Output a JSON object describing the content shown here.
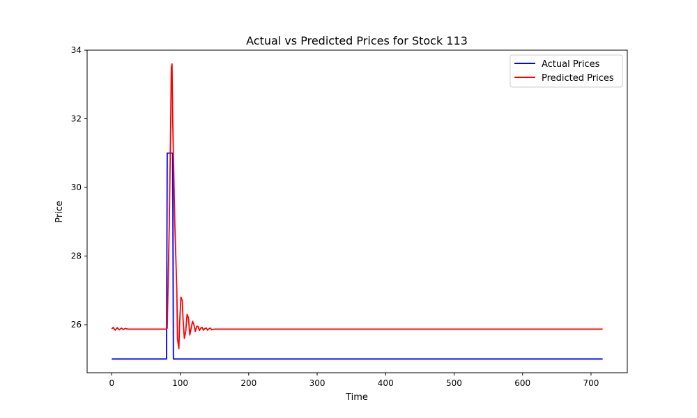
{
  "chart_data": {
    "type": "line",
    "title": "Actual vs Predicted Prices for Stock 113",
    "xlabel": "Time",
    "ylabel": "Price",
    "xlim": [
      -36,
      753
    ],
    "ylim": [
      24.6,
      34.0
    ],
    "xticks": [
      0,
      100,
      200,
      300,
      400,
      500,
      600,
      700
    ],
    "yticks": [
      26,
      28,
      30,
      32,
      34
    ],
    "grid": false,
    "legend_position": "top-right",
    "series": [
      {
        "name": "Actual Prices",
        "color": "#0000ff",
        "x": [
          0,
          80,
          81,
          89,
          90,
          717
        ],
        "y": [
          25.0,
          25.0,
          31.0,
          31.0,
          25.0,
          25.0
        ]
      },
      {
        "name": "Predicted Prices",
        "color": "#ff0000",
        "x": [
          0,
          2,
          5,
          8,
          11,
          14,
          17,
          20,
          24,
          30,
          80,
          81,
          84,
          86,
          87,
          88,
          89,
          92,
          95,
          96,
          98,
          99,
          101,
          103,
          104,
          106,
          108,
          110,
          112,
          114,
          116,
          118,
          120,
          122,
          124,
          126,
          128,
          130,
          132,
          134,
          136,
          138,
          140,
          142,
          144,
          146,
          150,
          200,
          717
        ],
        "y": [
          25.88,
          25.92,
          25.84,
          25.91,
          25.85,
          25.9,
          25.86,
          25.89,
          25.87,
          25.87,
          25.87,
          25.9,
          28.9,
          31.8,
          33.5,
          33.6,
          32.0,
          29.0,
          27.0,
          25.6,
          25.3,
          26.0,
          26.8,
          26.7,
          26.2,
          25.6,
          25.8,
          26.3,
          26.2,
          25.7,
          25.9,
          26.1,
          26.0,
          25.8,
          25.95,
          25.95,
          25.83,
          25.9,
          25.92,
          25.84,
          25.89,
          25.9,
          25.84,
          25.88,
          25.9,
          25.85,
          25.87,
          25.87,
          25.87
        ]
      }
    ]
  }
}
